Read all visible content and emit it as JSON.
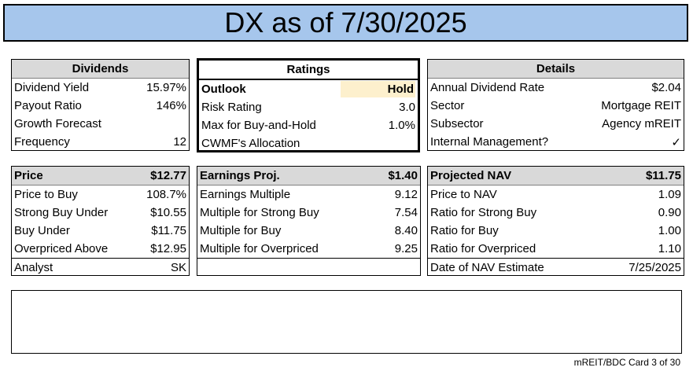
{
  "title": "DX as of 7/30/2025",
  "dividends": {
    "header": "Dividends",
    "rows": [
      {
        "label": "Dividend Yield",
        "value": "15.97%"
      },
      {
        "label": "Payout Ratio",
        "value": "146%"
      },
      {
        "label": "Growth Forecast",
        "value": ""
      },
      {
        "label": "Frequency",
        "value": "12"
      }
    ]
  },
  "ratings": {
    "header": "Ratings",
    "rows": [
      {
        "label": "Outlook",
        "value": "Hold"
      },
      {
        "label": "Risk Rating",
        "value": "3.0"
      },
      {
        "label": "Max for Buy-and-Hold",
        "value": "1.0%"
      },
      {
        "label": "CWMF's Allocation",
        "value": ""
      }
    ],
    "highlight_color": "#fdf0cd"
  },
  "details": {
    "header": "Details",
    "rows": [
      {
        "label": "Annual Dividend Rate",
        "value": "$2.04"
      },
      {
        "label": "Sector",
        "value": "Mortgage REIT"
      },
      {
        "label": "Subsector",
        "value": "Agency mREIT"
      },
      {
        "label": "Internal Management?",
        "value": "✓"
      }
    ]
  },
  "price": {
    "header_label": "Price",
    "header_value": "$12.77",
    "rows": [
      {
        "label": "Price to Buy",
        "value": "108.7%"
      },
      {
        "label": "Strong Buy Under",
        "value": "$10.55"
      },
      {
        "label": "Buy Under",
        "value": "$11.75"
      },
      {
        "label": "Overpriced Above",
        "value": "$12.95"
      }
    ],
    "footer": {
      "label": "Analyst",
      "value": "SK"
    }
  },
  "earnings": {
    "header_label": "Earnings Proj.",
    "header_value": "$1.40",
    "rows": [
      {
        "label": "Earnings Multiple",
        "value": "9.12"
      },
      {
        "label": "Multiple for Strong Buy",
        "value": "7.54"
      },
      {
        "label": "Multiple for Buy",
        "value": "8.40"
      },
      {
        "label": "Multiple for Overpriced",
        "value": "9.25"
      }
    ]
  },
  "nav": {
    "header_label": "Projected NAV",
    "header_value": "$11.75",
    "rows": [
      {
        "label": "Price to NAV",
        "value": "1.09"
      },
      {
        "label": "Ratio for Strong Buy",
        "value": "0.90"
      },
      {
        "label": "Ratio for Buy",
        "value": "1.00"
      },
      {
        "label": "Ratio for Overpriced",
        "value": "1.10"
      }
    ],
    "footer": {
      "label": "Date of NAV Estimate",
      "value": "7/25/2025"
    }
  },
  "notes": "",
  "footer_text": "mREIT/BDC Card 3 of 30",
  "colors": {
    "title_bg": "#a6c6ec",
    "header_bg": "#d9d9d9",
    "highlight": "#fdf0cd"
  }
}
